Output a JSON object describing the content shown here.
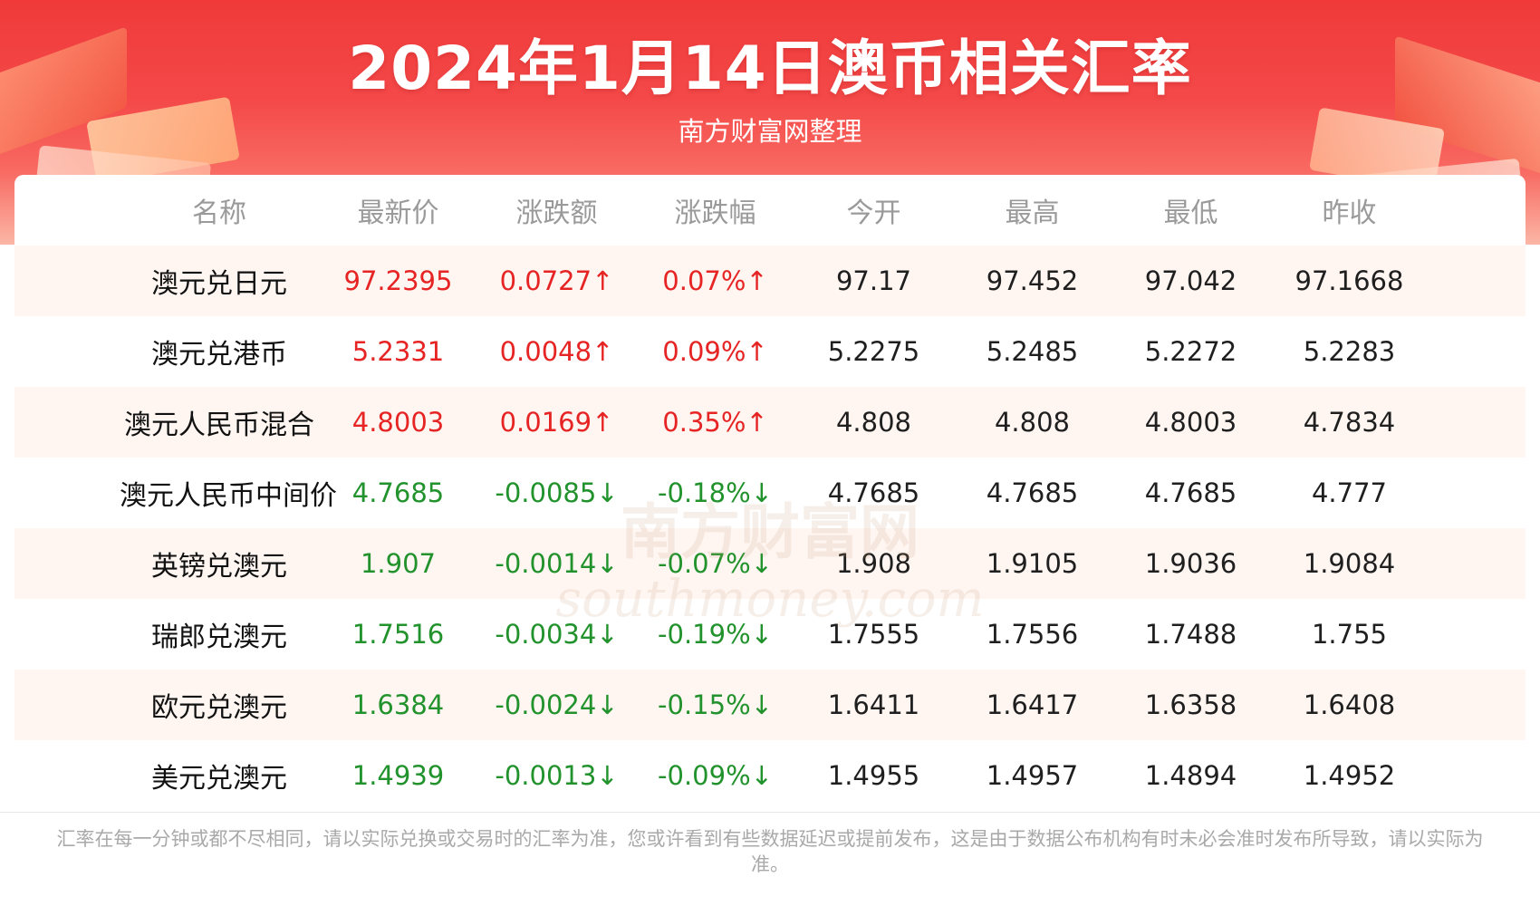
{
  "header": {
    "title": "2024年1月14日澳币相关汇率",
    "subtitle": "南方财富网整理"
  },
  "watermark": {
    "line1": "南方财富网",
    "line2": "southmoney.com"
  },
  "colors": {
    "banner": "#f03a3a",
    "up": "#e62424",
    "down": "#21922c",
    "row_shade": "#fff6f2"
  },
  "chart_data": {
    "type": "table",
    "columns": [
      "名称",
      "最新价",
      "涨跌额",
      "涨跌幅",
      "今开",
      "最高",
      "最低",
      "昨收"
    ],
    "rows": [
      {
        "name": "澳元兑日元",
        "latest": "97.2395",
        "change": "0.0727↑",
        "change_pct": "0.07%↑",
        "open": "97.17",
        "high": "97.452",
        "low": "97.042",
        "prev_close": "97.1668",
        "dir": "up"
      },
      {
        "name": "澳元兑港币",
        "latest": "5.2331",
        "change": "0.0048↑",
        "change_pct": "0.09%↑",
        "open": "5.2275",
        "high": "5.2485",
        "low": "5.2272",
        "prev_close": "5.2283",
        "dir": "up"
      },
      {
        "name": "澳元人民币混合",
        "latest": "4.8003",
        "change": "0.0169↑",
        "change_pct": "0.35%↑",
        "open": "4.808",
        "high": "4.808",
        "low": "4.8003",
        "prev_close": "4.7834",
        "dir": "up"
      },
      {
        "name": "澳元人民币中间价",
        "latest": "4.7685",
        "change": "-0.0085↓",
        "change_pct": "-0.18%↓",
        "open": "4.7685",
        "high": "4.7685",
        "low": "4.7685",
        "prev_close": "4.777",
        "dir": "down"
      },
      {
        "name": "英镑兑澳元",
        "latest": "1.907",
        "change": "-0.0014↓",
        "change_pct": "-0.07%↓",
        "open": "1.908",
        "high": "1.9105",
        "low": "1.9036",
        "prev_close": "1.9084",
        "dir": "down"
      },
      {
        "name": "瑞郎兑澳元",
        "latest": "1.7516",
        "change": "-0.0034↓",
        "change_pct": "-0.19%↓",
        "open": "1.7555",
        "high": "1.7556",
        "low": "1.7488",
        "prev_close": "1.755",
        "dir": "down"
      },
      {
        "name": "欧元兑澳元",
        "latest": "1.6384",
        "change": "-0.0024↓",
        "change_pct": "-0.15%↓",
        "open": "1.6411",
        "high": "1.6417",
        "low": "1.6358",
        "prev_close": "1.6408",
        "dir": "down"
      },
      {
        "name": "美元兑澳元",
        "latest": "1.4939",
        "change": "-0.0013↓",
        "change_pct": "-0.09%↓",
        "open": "1.4955",
        "high": "1.4957",
        "low": "1.4894",
        "prev_close": "1.4952",
        "dir": "down"
      }
    ]
  },
  "footer": {
    "note": "汇率在每一分钟或都不尽相同，请以实际兑换或交易时的汇率为准，您或许看到有些数据延迟或提前发布，这是由于数据公布机构有时未必会准时发布所导致，请以实际为准。"
  }
}
